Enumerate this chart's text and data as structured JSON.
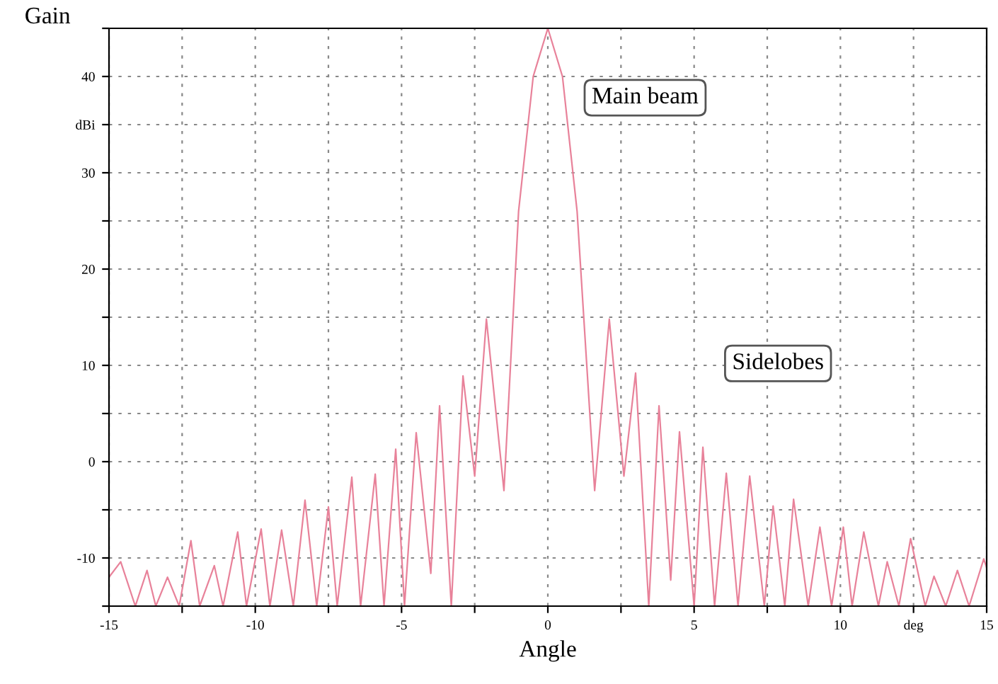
{
  "chart_data": {
    "type": "line",
    "ylabel": "Gain",
    "xlabel": "Angle",
    "x": [
      -15,
      -14.6,
      -14.1,
      -13.7,
      -13.4,
      -13.0,
      -12.6,
      -12.2,
      -11.9,
      -11.4,
      -11.1,
      -10.6,
      -10.3,
      -9.8,
      -9.5,
      -9.1,
      -8.7,
      -8.3,
      -7.9,
      -7.5,
      -7.2,
      -6.7,
      -6.4,
      -5.9,
      -5.6,
      -5.2,
      -4.9,
      -4.5,
      -4.0,
      -3.7,
      -3.3,
      -2.9,
      -2.5,
      -2.1,
      -1.5,
      -1.0,
      -0.5,
      0,
      0.5,
      1.0,
      1.6,
      2.1,
      2.6,
      3.0,
      3.45,
      3.8,
      4.2,
      4.5,
      5.0,
      5.3,
      5.7,
      6.1,
      6.5,
      6.9,
      7.4,
      7.7,
      8.1,
      8.4,
      8.9,
      9.3,
      9.7,
      10.1,
      10.4,
      10.8,
      11.3,
      11.6,
      12.0,
      12.4,
      12.9,
      13.2,
      13.6,
      14.0,
      14.4,
      14.9,
      15
    ],
    "series": [
      {
        "color": "#e8829a",
        "values": [
          -12,
          -10.4,
          -15,
          -11.3,
          -15,
          -12.0,
          -15,
          -8.2,
          -15,
          -10.8,
          -15,
          -7.3,
          -15,
          -7.0,
          -15,
          -7.1,
          -15,
          -4.0,
          -15,
          -4.7,
          -15,
          -1.6,
          -15,
          -1.3,
          -15,
          1.3,
          -15,
          3.0,
          -11.6,
          5.8,
          -15,
          8.9,
          -1.5,
          14.8,
          -3,
          26,
          40,
          45,
          40,
          26,
          -3,
          14.8,
          -1.5,
          9.2,
          -15,
          5.8,
          -12.3,
          3.1,
          -15,
          1.5,
          -15,
          -1.2,
          -15,
          -1.5,
          -15,
          -4.6,
          -15,
          -3.9,
          -15,
          -6.8,
          -15,
          -6.8,
          -15,
          -7.3,
          -15,
          -10.4,
          -15,
          -8.0,
          -15,
          -11.9,
          -15,
          -11.3,
          -15,
          -10.1,
          -11
        ]
      }
    ],
    "xlim": [
      -15,
      15
    ],
    "ylim": [
      -15,
      45
    ],
    "xticks": [
      -15,
      {
        "value": -12.5,
        "label": null
      },
      -10,
      {
        "value": -7.5,
        "label": null
      },
      -5,
      {
        "value": -2.5,
        "label": null
      },
      0,
      {
        "value": 2.5,
        "label": null
      },
      5,
      {
        "value": 7.5,
        "label": null
      },
      10,
      {
        "value": 12.5,
        "label": "deg"
      },
      15
    ],
    "yticks": [
      {
        "value": -15,
        "label": null
      },
      -10,
      {
        "value": -5,
        "label": null
      },
      0,
      {
        "value": 5,
        "label": null
      },
      10,
      {
        "value": 15,
        "label": null
      },
      20,
      {
        "value": 25,
        "label": null
      },
      30,
      {
        "value": 35,
        "label": "dBi"
      },
      40,
      {
        "value": 45,
        "label": null
      }
    ],
    "grid": true,
    "marker": "none",
    "line_style": "solid",
    "annotations": [
      "Main beam",
      "Sidelobes"
    ]
  }
}
